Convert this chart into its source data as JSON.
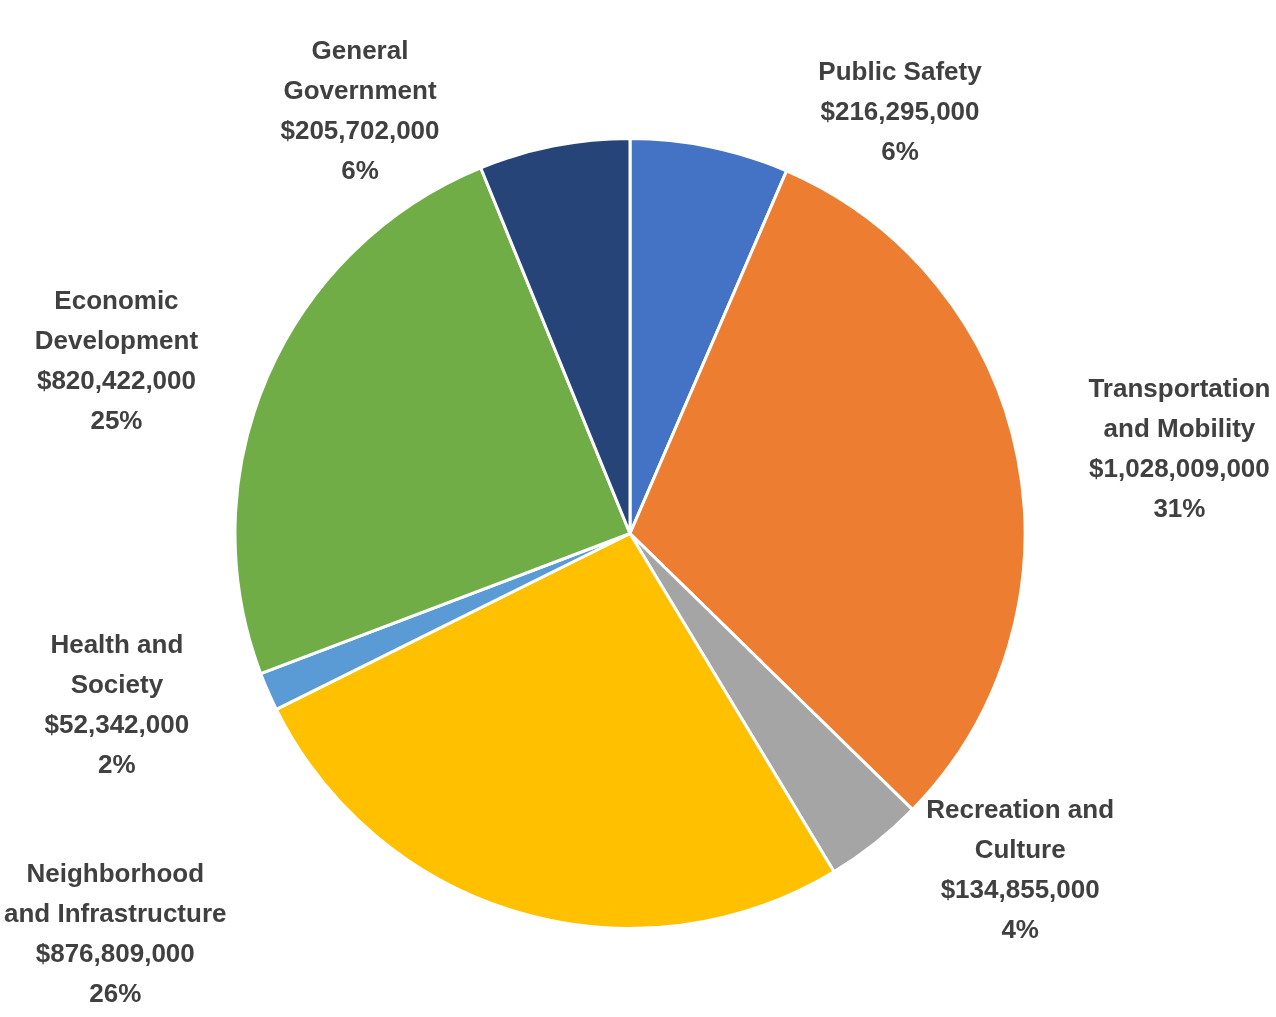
{
  "chart_data": {
    "type": "pie",
    "categories": [
      "Public Safety",
      "Transportation and Mobility",
      "Recreation and Culture",
      "Neighborhood and Infrastructure",
      "Health and Society",
      "Economic Development",
      "General Government"
    ],
    "values": [
      216295000,
      1028009000,
      134855000,
      876809000,
      52342000,
      820422000,
      205702000
    ],
    "colors": [
      "#4472c4",
      "#ed7d31",
      "#a5a5a5",
      "#ffc000",
      "#5b9bd5",
      "#70ad47",
      "#264478"
    ],
    "value_labels": [
      "$216,295,000\n6%",
      "$1,028,009,000\n31%",
      "$134,855,000\n4%",
      "$876,809,000\n26%",
      "$52,342,000\n2%",
      "$820,422,000\n25%",
      "$205,702,000\n6%"
    ]
  }
}
